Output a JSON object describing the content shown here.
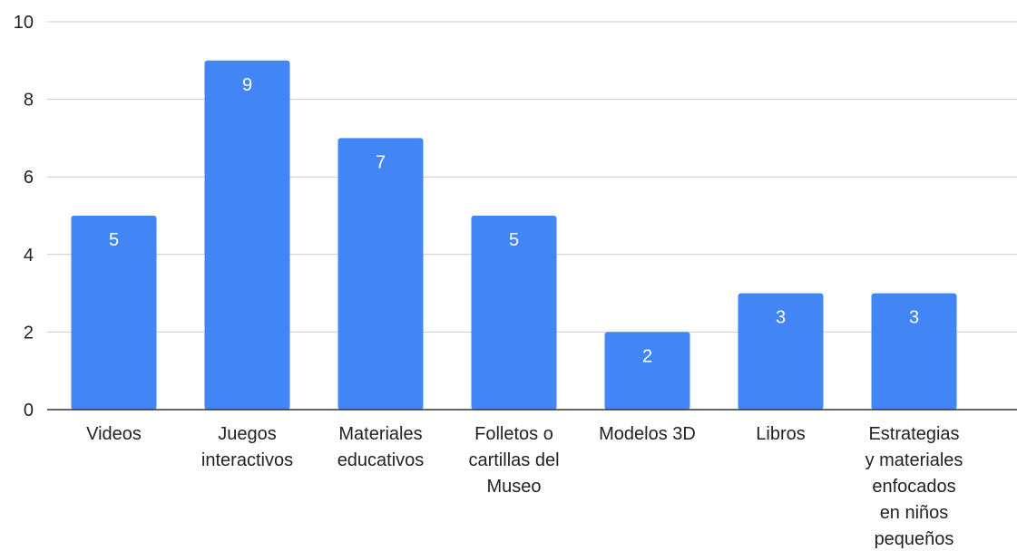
{
  "chart_data": {
    "type": "bar",
    "title": "",
    "xlabel": "",
    "ylabel": "",
    "ylim": [
      0,
      10
    ],
    "yticks": [
      0,
      2,
      4,
      6,
      8,
      10
    ],
    "grid": true,
    "legend": "none",
    "categories": [
      "Videos",
      "Juegos interactivos",
      "Materiales educativos",
      "Folletos o cartillas del Museo",
      "Modelos 3D",
      "Libros",
      "Estrategias y materiales enfocados en niños pequeños"
    ],
    "category_lines": [
      [
        "Videos"
      ],
      [
        "Juegos",
        "interactivos"
      ],
      [
        "Materiales",
        "educativos"
      ],
      [
        "Folletos o",
        "cartillas del",
        "Museo"
      ],
      [
        "Modelos 3D"
      ],
      [
        "Libros"
      ],
      [
        "Estrategias",
        "y materiales",
        "enfocados",
        "en niños",
        "pequeños"
      ]
    ],
    "values": [
      5,
      9,
      7,
      5,
      2,
      3,
      3
    ],
    "colors": {
      "bar": "#4285f4",
      "data_label": "#ffffff",
      "gridline": "#cccccc",
      "axis": "#333333",
      "text": "#222222"
    }
  }
}
